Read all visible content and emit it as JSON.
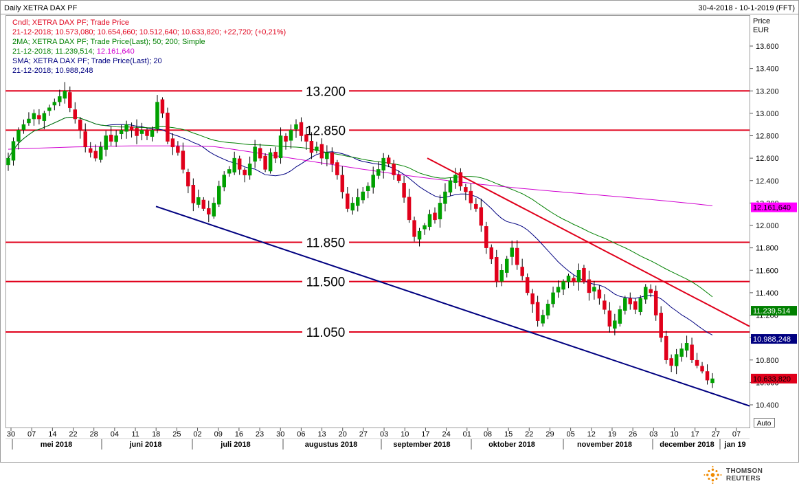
{
  "header": {
    "title": "Daily XETRA DAX PF",
    "range": "30-4-2018 - 10-1-2019 (FFT)"
  },
  "legend": [
    {
      "text": "Cndl; XETRA DAX PF; Trade Price",
      "color": "#e0001b"
    },
    {
      "text": "21-12-2018; 10.573,080; 10.654,660; 10.512,640; 10.633,820; +22,720; (+0,21%)",
      "color": "#e0001b"
    },
    {
      "text": "2MA; XETRA DAX PF; Trade Price(Last); 50; 200; Simple",
      "color": "#008000"
    },
    {
      "text": "21-12-2018; 11.239,514; ",
      "color": "#008000",
      "extra": "12.161,640",
      "extra_color": "#d000d0"
    },
    {
      "text": "SMA; XETRA DAX PF; Trade Price(Last); 20",
      "color": "#000080"
    },
    {
      "text": "21-12-2018; 10.988,248",
      "color": "#000080"
    }
  ],
  "axis": {
    "y_title_1": "Price",
    "y_title_2": "EUR",
    "auto_label": "Auto"
  },
  "brand": {
    "name": "THOMSON REUTERS"
  },
  "chart_data": {
    "type": "candlestick",
    "y_range": [
      10380,
      13800
    ],
    "y_ticks": [
      10400,
      10600,
      10800,
      11000,
      11200,
      11400,
      11600,
      11800,
      12000,
      12200,
      12400,
      12600,
      12800,
      13000,
      13200,
      13400,
      13600
    ],
    "y_tick_labels": [
      "10.400",
      "10.600",
      "10.800",
      "11.000",
      "11.200",
      "11.400",
      "11.600",
      "11.800",
      "12.000",
      "12.200",
      "12.400",
      "12.600",
      "12.800",
      "13.000",
      "13.200",
      "13.400",
      "13.600"
    ],
    "x_day_labels": [
      "30",
      "07",
      "14",
      "22",
      "28",
      "04",
      "11",
      "18",
      "25",
      "02",
      "09",
      "16",
      "23",
      "30",
      "06",
      "13",
      "20",
      "27",
      "03",
      "10",
      "17",
      "24",
      "01",
      "08",
      "15",
      "22",
      "29",
      "05",
      "12",
      "19",
      "26",
      "03",
      "10",
      "17",
      "27",
      "07"
    ],
    "x_month_labels": [
      "mei 2018",
      "juni 2018",
      "juli 2018",
      "augustus 2018",
      "september 2018",
      "oktober 2018",
      "november 2018",
      "december 2018",
      "jan 19"
    ],
    "levels": [
      {
        "value": 13200,
        "label": "13.200"
      },
      {
        "value": 12850,
        "label": "12.850"
      },
      {
        "value": 11850,
        "label": "11.850"
      },
      {
        "value": 11500,
        "label": "11.500"
      },
      {
        "value": 11050,
        "label": "11.050"
      }
    ],
    "value_badges": [
      {
        "label": "12.161,640",
        "value": 12161.64,
        "color": "#ff00ff",
        "text_color": "#000000"
      },
      {
        "label": "11.239,514",
        "value": 11239.514,
        "color": "#008000",
        "text_color": "#ffffff"
      },
      {
        "label": "10.988,248",
        "value": 10988.248,
        "color": "#000080",
        "text_color": "#ffffff"
      },
      {
        "label": "10.633,820",
        "value": 10633.82,
        "color": "#e0001b",
        "text_color": "#000000"
      }
    ],
    "closes": [
      12600,
      12750,
      12850,
      12900,
      12950,
      13000,
      12950,
      13000,
      13050,
      13100,
      13150,
      13200,
      13050,
      12950,
      12850,
      12700,
      12650,
      12600,
      12700,
      12800,
      12750,
      12800,
      12850,
      12900,
      12850,
      12800,
      12850,
      12800,
      12850,
      13100,
      13000,
      12750,
      12700,
      12650,
      12500,
      12350,
      12200,
      12250,
      12150,
      12100,
      12200,
      12350,
      12450,
      12500,
      12600,
      12500,
      12450,
      12550,
      12700,
      12600,
      12500,
      12650,
      12600,
      12800,
      12750,
      12850,
      12900,
      12800,
      12750,
      12650,
      12700,
      12600,
      12650,
      12550,
      12450,
      12300,
      12150,
      12200,
      12250,
      12300,
      12350,
      12450,
      12500,
      12600,
      12550,
      12450,
      12400,
      12250,
      12050,
      11900,
      11950,
      12000,
      12100,
      12050,
      12200,
      12300,
      12400,
      12450,
      12350,
      12300,
      12200,
      12150,
      12000,
      11800,
      11700,
      11500,
      11600,
      11700,
      11800,
      11650,
      11550,
      11400,
      11300,
      11150,
      11200,
      11300,
      11400,
      11450,
      11500,
      11550,
      11500,
      11600,
      11500,
      11400,
      11450,
      11350,
      11250,
      11100,
      11150,
      11250,
      11350,
      11300,
      11250,
      11350,
      11450,
      11400,
      11200,
      11000,
      10800,
      10750,
      10850,
      10900,
      10950,
      10800,
      10750,
      10700,
      10620,
      10633
    ],
    "trendlines": [
      {
        "from": [
          "jun-20",
          12170
        ],
        "to": [
          "jan-10",
          10390
        ],
        "color": "#000080"
      },
      {
        "from": [
          "sep-13",
          12600
        ],
        "to": [
          "jan-10",
          11100
        ],
        "color": "#e0001b"
      }
    ],
    "moving_averages": [
      {
        "label": "SMA 20",
        "color": "#000080"
      },
      {
        "label": "MA 50",
        "color": "#008000"
      },
      {
        "label": "MA 200",
        "color": "#d000d0"
      }
    ]
  }
}
